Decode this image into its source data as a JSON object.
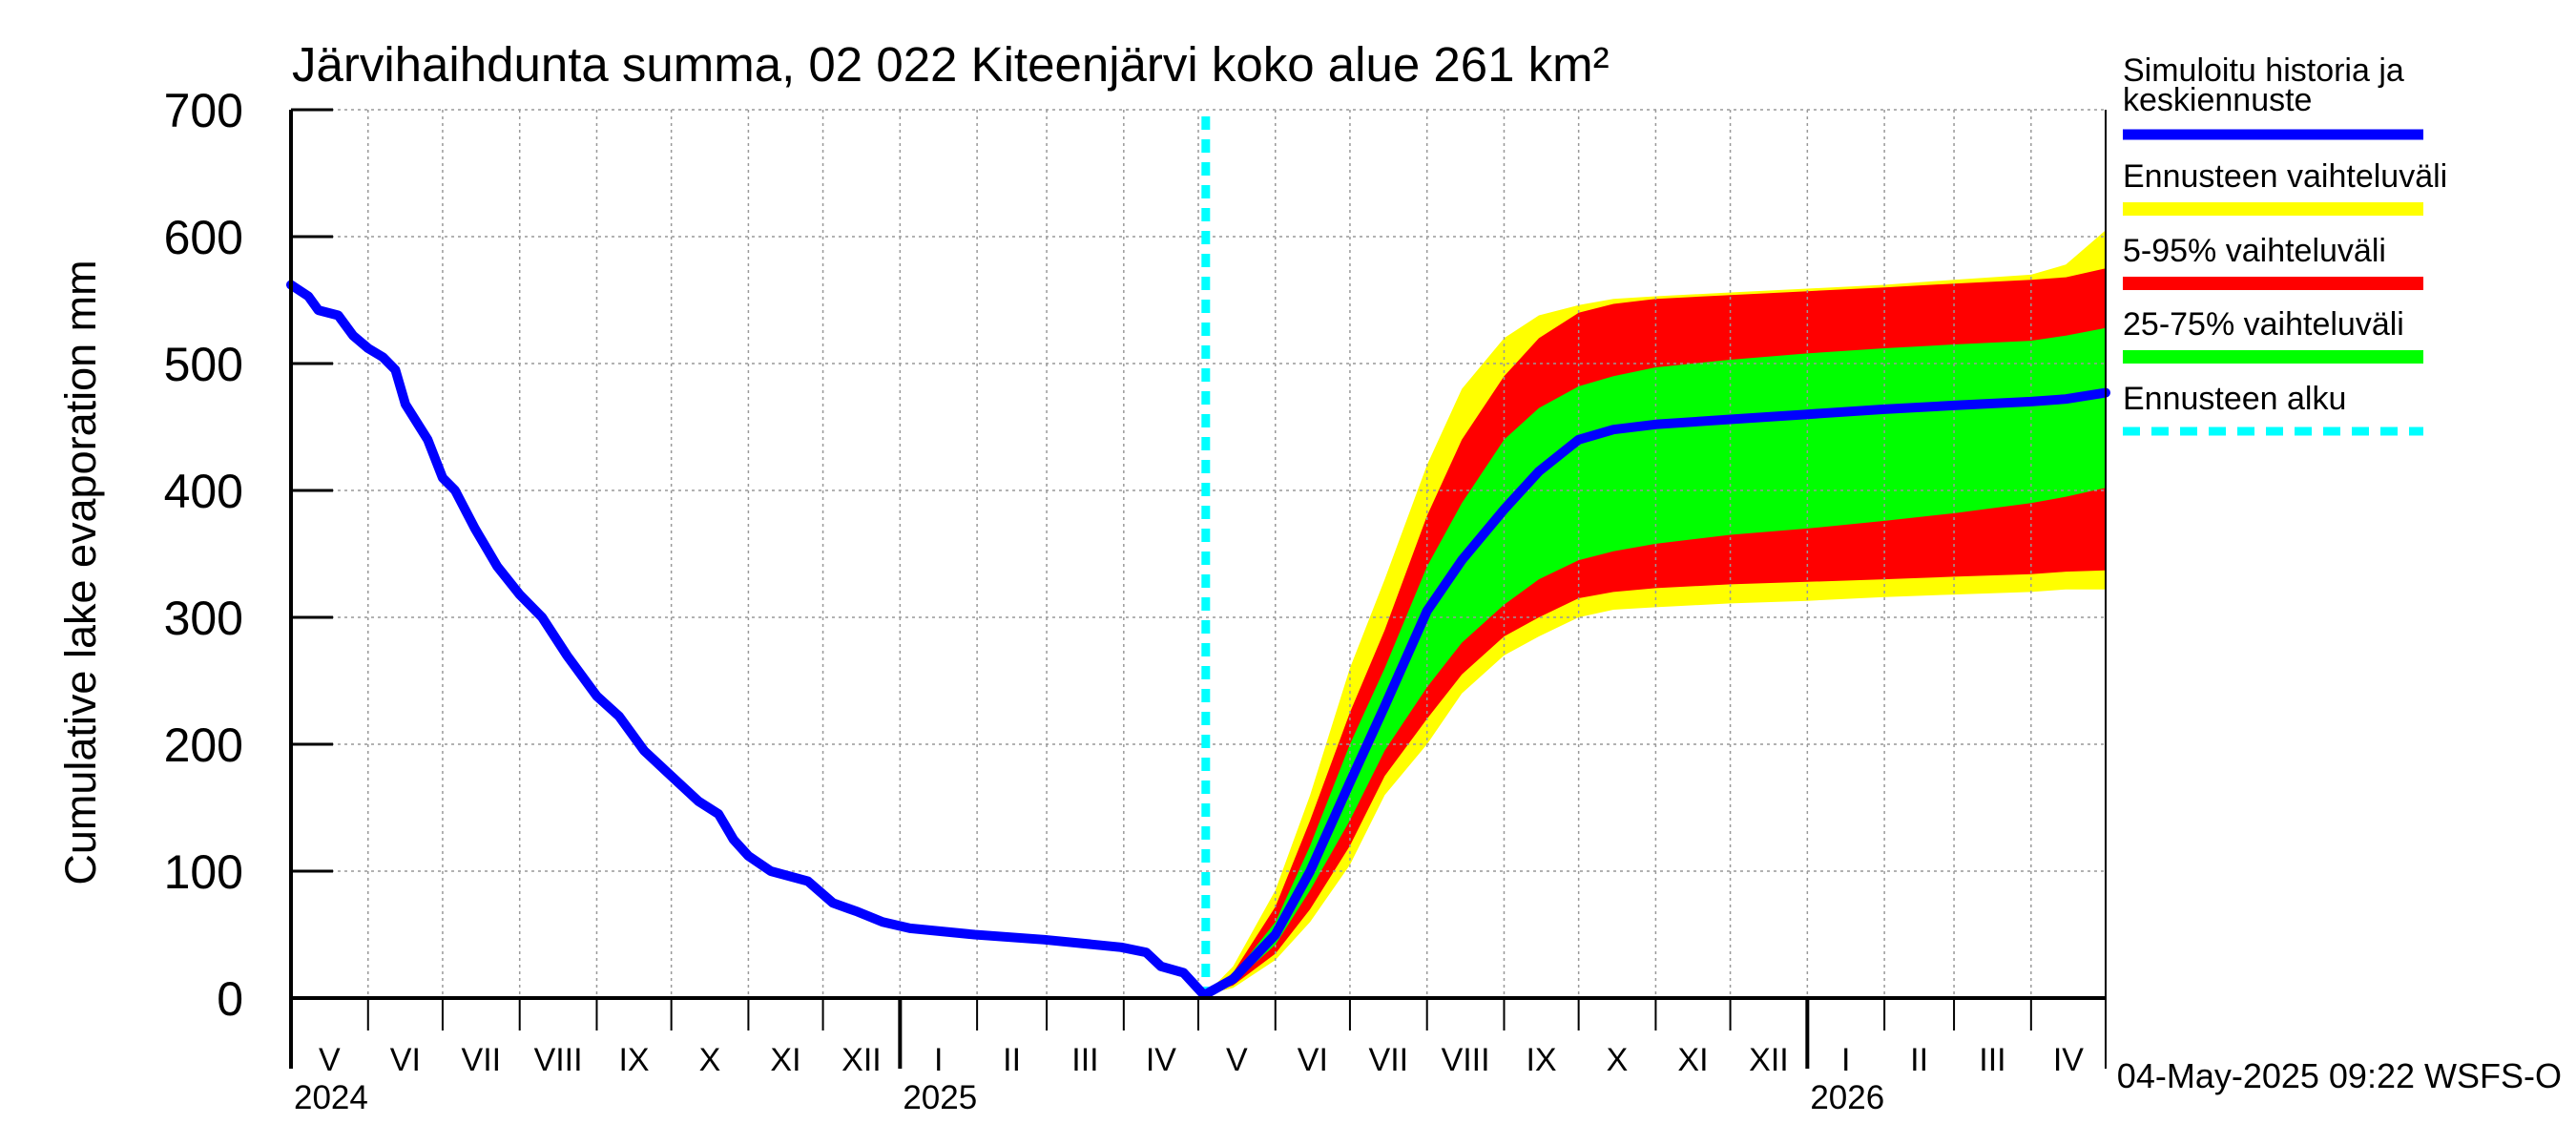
{
  "chart_data": {
    "type": "line",
    "title": "Järvihaihdunta summa, 02 022 Kiteenjärvi koko alue 261 km²",
    "ylabel": "Cumulative lake evaporation   mm",
    "xlabel": "",
    "ylim": [
      0,
      700
    ],
    "yticks": [
      0,
      100,
      200,
      300,
      400,
      500,
      600,
      700
    ],
    "x_range": [
      "2024-05-01",
      "2026-05-01"
    ],
    "months": [
      {
        "label": "V",
        "start": "2024-05-01"
      },
      {
        "label": "VI",
        "start": "2024-06-01"
      },
      {
        "label": "VII",
        "start": "2024-07-01"
      },
      {
        "label": "VIII",
        "start": "2024-08-01"
      },
      {
        "label": "IX",
        "start": "2024-09-01"
      },
      {
        "label": "X",
        "start": "2024-10-01"
      },
      {
        "label": "XI",
        "start": "2024-11-01"
      },
      {
        "label": "XII",
        "start": "2024-12-01"
      },
      {
        "label": "I",
        "start": "2025-01-01"
      },
      {
        "label": "II",
        "start": "2025-02-01"
      },
      {
        "label": "III",
        "start": "2025-03-01"
      },
      {
        "label": "IV",
        "start": "2025-04-01"
      },
      {
        "label": "V",
        "start": "2025-05-01"
      },
      {
        "label": "VI",
        "start": "2025-06-01"
      },
      {
        "label": "VII",
        "start": "2025-07-01"
      },
      {
        "label": "VIII",
        "start": "2025-08-01"
      },
      {
        "label": "IX",
        "start": "2025-09-01"
      },
      {
        "label": "X",
        "start": "2025-10-01"
      },
      {
        "label": "XI",
        "start": "2025-11-01"
      },
      {
        "label": "XII",
        "start": "2025-12-01"
      },
      {
        "label": "I",
        "start": "2026-01-01"
      },
      {
        "label": "II",
        "start": "2026-02-01"
      },
      {
        "label": "III",
        "start": "2026-03-01"
      },
      {
        "label": "IV",
        "start": "2026-04-01"
      }
    ],
    "years": [
      {
        "label": "2024",
        "date": "2024-05-01"
      },
      {
        "label": "2025",
        "date": "2025-01-01"
      },
      {
        "label": "2026",
        "date": "2026-01-01"
      }
    ],
    "forecast_start": "2025-05-04",
    "history": {
      "name": "Simuloitu historia ja keskiennuste",
      "color": "#0000ff",
      "points": [
        [
          "2024-05-01",
          562
        ],
        [
          "2024-05-08",
          553
        ],
        [
          "2024-05-12",
          542
        ],
        [
          "2024-05-20",
          538
        ],
        [
          "2024-05-26",
          522
        ],
        [
          "2024-06-01",
          512
        ],
        [
          "2024-06-07",
          505
        ],
        [
          "2024-06-12",
          495
        ],
        [
          "2024-06-16",
          468
        ],
        [
          "2024-06-25",
          440
        ],
        [
          "2024-07-01",
          410
        ],
        [
          "2024-07-06",
          400
        ],
        [
          "2024-07-14",
          370
        ],
        [
          "2024-07-23",
          340
        ],
        [
          "2024-08-01",
          318
        ],
        [
          "2024-08-10",
          300
        ],
        [
          "2024-08-20",
          270
        ],
        [
          "2024-09-01",
          238
        ],
        [
          "2024-09-10",
          222
        ],
        [
          "2024-09-20",
          195
        ],
        [
          "2024-10-01",
          175
        ],
        [
          "2024-10-12",
          155
        ],
        [
          "2024-10-20",
          145
        ],
        [
          "2024-10-26",
          125
        ],
        [
          "2024-11-01",
          112
        ],
        [
          "2024-11-10",
          100
        ],
        [
          "2024-11-25",
          92
        ],
        [
          "2024-12-05",
          75
        ],
        [
          "2024-12-15",
          68
        ],
        [
          "2024-12-25",
          60
        ],
        [
          "2025-01-05",
          55
        ],
        [
          "2025-01-31",
          50
        ],
        [
          "2025-02-28",
          46
        ],
        [
          "2025-03-31",
          40
        ],
        [
          "2025-04-10",
          36
        ],
        [
          "2025-04-16",
          25
        ],
        [
          "2025-04-25",
          20
        ],
        [
          "2025-05-03",
          3
        ]
      ]
    },
    "forecast": {
      "dates": [
        "2025-05-04",
        "2025-05-15",
        "2025-06-01",
        "2025-06-15",
        "2025-07-01",
        "2025-07-15",
        "2025-08-01",
        "2025-08-15",
        "2025-09-01",
        "2025-09-15",
        "2025-10-01",
        "2025-10-15",
        "2025-11-01",
        "2025-12-01",
        "2026-01-01",
        "2026-02-01",
        "2026-03-01",
        "2026-04-01",
        "2026-04-15",
        "2026-05-01"
      ],
      "median": [
        3,
        15,
        50,
        100,
        170,
        230,
        305,
        345,
        385,
        415,
        440,
        448,
        452,
        456,
        460,
        464,
        467,
        470,
        472,
        477
      ],
      "p25": [
        3,
        12,
        42,
        85,
        140,
        195,
        245,
        280,
        310,
        330,
        345,
        352,
        358,
        365,
        370,
        376,
        382,
        390,
        395,
        402
      ],
      "p75": [
        3,
        18,
        60,
        120,
        200,
        260,
        340,
        390,
        440,
        465,
        482,
        490,
        497,
        503,
        508,
        512,
        515,
        518,
        522,
        528
      ],
      "p5": [
        3,
        10,
        35,
        70,
        120,
        175,
        220,
        255,
        285,
        300,
        315,
        320,
        323,
        326,
        328,
        330,
        332,
        334,
        336,
        337
      ],
      "p95": [
        3,
        20,
        72,
        140,
        225,
        290,
        380,
        440,
        490,
        520,
        540,
        547,
        551,
        554,
        557,
        560,
        563,
        566,
        568,
        575
      ],
      "min": [
        3,
        8,
        30,
        60,
        105,
        160,
        200,
        240,
        270,
        285,
        300,
        306,
        308,
        311,
        313,
        316,
        318,
        320,
        322,
        322
      ],
      "max": [
        3,
        25,
        85,
        160,
        260,
        330,
        420,
        480,
        520,
        538,
        546,
        551,
        553,
        556,
        559,
        562,
        566,
        570,
        578,
        605
      ]
    },
    "legend": [
      {
        "label": "Simuloitu historia ja",
        "label2": "keskiennuste",
        "color": "#0000ff",
        "style": "solid"
      },
      {
        "label": "Ennusteen vaihteluväli",
        "color": "#ffff00",
        "style": "solid"
      },
      {
        "label": "5-95% vaihteluväli",
        "color": "#ff0000",
        "style": "solid"
      },
      {
        "label": "25-75% vaihteluväli",
        "color": "#00ff00",
        "style": "solid"
      },
      {
        "label": "Ennusteen alku",
        "color": "#00ffff",
        "style": "dashed"
      }
    ],
    "legend_position": "right"
  },
  "footer": "04-May-2025 09:22 WSFS-O"
}
